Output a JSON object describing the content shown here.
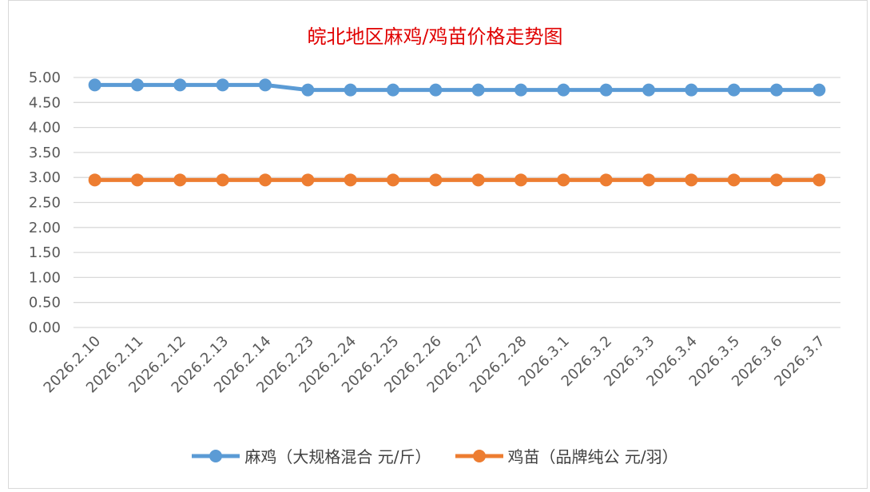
{
  "chart_data": {
    "type": "line",
    "title": "皖北地区麻鸡/鸡苗价格走势图",
    "categories": [
      "2026.2.10",
      "2026.2.11",
      "2026.2.12",
      "2026.2.13",
      "2026.2.14",
      "2026.2.23",
      "2026.2.24",
      "2026.2.25",
      "2026.2.26",
      "2026.2.27",
      "2026.2.28",
      "2026.3.1",
      "2026.3.2",
      "2026.3.3",
      "2026.3.4",
      "2026.3.5",
      "2026.3.6",
      "2026.3.7"
    ],
    "series": [
      {
        "name": "麻鸡（大规格混合 元/斤）",
        "color": "#5b9bd5",
        "values": [
          4.85,
          4.85,
          4.85,
          4.85,
          4.85,
          4.75,
          4.75,
          4.75,
          4.75,
          4.75,
          4.75,
          4.75,
          4.75,
          4.75,
          4.75,
          4.75,
          4.75,
          4.75
        ]
      },
      {
        "name": "鸡苗（品牌纯公 元/羽）",
        "color": "#ed7d31",
        "values": [
          2.95,
          2.95,
          2.95,
          2.95,
          2.95,
          2.95,
          2.95,
          2.95,
          2.95,
          2.95,
          2.95,
          2.95,
          2.95,
          2.95,
          2.95,
          2.95,
          2.95,
          2.95
        ]
      }
    ],
    "yticks": [
      "0.00",
      "0.50",
      "1.00",
      "1.50",
      "2.00",
      "2.50",
      "3.00",
      "3.50",
      "4.00",
      "4.50",
      "5.00"
    ],
    "ylim": [
      0,
      5
    ],
    "xlabel": "",
    "ylabel": "",
    "grid": true,
    "legend": "bottom"
  }
}
